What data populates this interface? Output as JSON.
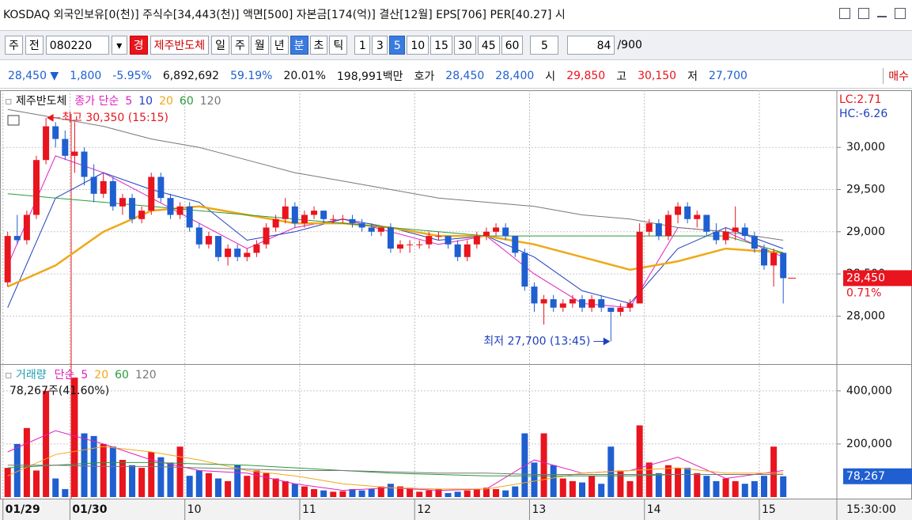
{
  "title_bar": "KOSDAQ 외국인보유[0(천)] 주식수[34,443(천)] 액면[500] 자본금[174(억)] 결산[12월] EPS[706] PER[40.27] 시",
  "toolbar": {
    "market": "주",
    "prev": "전",
    "code": "080220",
    "badge": "경",
    "name": "제주반도체",
    "periods": [
      "일",
      "주",
      "월",
      "년",
      "분",
      "초",
      "틱"
    ],
    "intervals": [
      "1",
      "3",
      "5",
      "10",
      "15",
      "30",
      "45",
      "60"
    ],
    "unit": "5",
    "count": "84",
    "max": "/900"
  },
  "info_bar": [
    "28,450 ▼",
    "1,800",
    "-5.95%",
    "6,892,692",
    "59.19%",
    "20.01%",
    "198,991백만",
    "호가",
    "28,450",
    "28,400",
    "시",
    "29,850",
    "고",
    "30,150",
    "저",
    "27,700",
    "매수"
  ],
  "time": "15:30:00",
  "chart_data": [
    {
      "type": "candlestick",
      "title": "제주반도체",
      "legend_label": "종가 단순",
      "categories": [
        "01/29",
        null,
        null,
        null,
        null,
        null,
        null,
        "01/30",
        null,
        null,
        null,
        null,
        null,
        null,
        null,
        null,
        null,
        null,
        null,
        "10",
        null,
        null,
        null,
        null,
        null,
        null,
        null,
        null,
        null,
        null,
        null,
        "11",
        null,
        null,
        null,
        null,
        null,
        null,
        null,
        null,
        null,
        null,
        null,
        "12",
        null,
        null,
        null,
        null,
        null,
        null,
        null,
        null,
        null,
        null,
        null,
        "13",
        null,
        null,
        null,
        null,
        null,
        null,
        null,
        null,
        null,
        null,
        null,
        "14",
        null,
        null,
        null,
        null,
        null,
        null,
        null,
        null,
        null,
        null,
        null,
        "15",
        null,
        null
      ],
      "open": [
        28400,
        28950,
        28900,
        29200,
        29850,
        30250,
        30100,
        29900,
        29950,
        29650,
        29450,
        29600,
        29300,
        29400,
        29150,
        29250,
        29650,
        29400,
        29200,
        29300,
        29050,
        28850,
        28950,
        28700,
        28800,
        28700,
        28750,
        28850,
        29050,
        29150,
        29300,
        29100,
        29200,
        29250,
        29150,
        29150,
        29150,
        29100,
        29050,
        29000,
        29050,
        28800,
        28850,
        28850,
        28850,
        28950,
        28950,
        28850,
        28700,
        28850,
        28950,
        29000,
        29050,
        28950,
        28750,
        28350,
        28150,
        28200,
        28100,
        28150,
        28200,
        28100,
        28200,
        28100,
        28050,
        28100,
        28150,
        29000,
        29100,
        28950,
        29200,
        29300,
        29150,
        29200,
        29000,
        28900,
        29000,
        29050,
        28950,
        28800,
        28600,
        28750
      ],
      "high": [
        29000,
        29200,
        29250,
        29900,
        30350,
        30300,
        30200,
        30300,
        30000,
        29800,
        29700,
        29650,
        29450,
        29450,
        29300,
        29700,
        29700,
        29450,
        29350,
        29350,
        29100,
        29000,
        28950,
        28850,
        28850,
        28800,
        28900,
        29100,
        29200,
        29400,
        29350,
        29250,
        29300,
        29250,
        29200,
        29200,
        29200,
        29150,
        29100,
        29050,
        29100,
        28900,
        28900,
        28900,
        29000,
        29000,
        28950,
        28900,
        28900,
        29000,
        29050,
        29100,
        29100,
        28950,
        28800,
        28400,
        28250,
        28250,
        28200,
        28250,
        28250,
        28250,
        28250,
        28100,
        28150,
        28200,
        29100,
        29150,
        29150,
        29250,
        29350,
        29350,
        29250,
        29200,
        29100,
        29050,
        29300,
        29100,
        29000,
        28850,
        28800,
        28750
      ],
      "low": [
        28350,
        28850,
        28850,
        29150,
        29800,
        30000,
        29850,
        29700,
        29550,
        29350,
        29400,
        29250,
        29200,
        29100,
        29100,
        29200,
        29350,
        29150,
        29150,
        29000,
        28800,
        28800,
        28650,
        28600,
        28650,
        28650,
        28700,
        28800,
        29000,
        29100,
        29050,
        29050,
        29150,
        29100,
        29100,
        29100,
        29050,
        29000,
        28950,
        28950,
        28750,
        28750,
        28750,
        28800,
        28800,
        28900,
        28800,
        28650,
        28650,
        28800,
        28900,
        28950,
        28900,
        28700,
        28300,
        28050,
        27900,
        28050,
        28050,
        28100,
        28050,
        28050,
        28050,
        27700,
        28000,
        28050,
        28150,
        28950,
        28900,
        28900,
        29100,
        29100,
        29050,
        28950,
        28850,
        28850,
        28900,
        28900,
        28750,
        28550,
        28350,
        28150
      ],
      "close": [
        28950,
        28900,
        29200,
        29850,
        30250,
        30100,
        29900,
        29950,
        29650,
        29450,
        29600,
        29300,
        29400,
        29150,
        29250,
        29650,
        29400,
        29200,
        29300,
        29050,
        28850,
        28950,
        28700,
        28800,
        28700,
        28750,
        28850,
        29050,
        29150,
        29300,
        29100,
        29200,
        29250,
        29150,
        29150,
        29150,
        29100,
        29050,
        29000,
        29050,
        28800,
        28850,
        28850,
        28850,
        28950,
        28950,
        28850,
        28700,
        28850,
        28950,
        29000,
        29050,
        28950,
        28750,
        28350,
        28150,
        28200,
        28100,
        28150,
        28200,
        28100,
        28200,
        28100,
        28050,
        28100,
        28150,
        29000,
        29100,
        28950,
        29200,
        29300,
        29150,
        29200,
        29000,
        28900,
        29000,
        29050,
        28950,
        28800,
        28600,
        28750,
        28450
      ],
      "up_color": "#e8141e",
      "down_color": "#1f5fd0",
      "series": [
        {
          "name": "5",
          "color": "#e020c0",
          "width": 1,
          "x": [
            0,
            5,
            10,
            15,
            20,
            25,
            30,
            35,
            40,
            45,
            50,
            55,
            60,
            65,
            70,
            75,
            81
          ],
          "values": [
            28600,
            29900,
            29700,
            29400,
            29100,
            28800,
            29050,
            29150,
            29000,
            28850,
            28950,
            28500,
            28150,
            28100,
            29050,
            29000,
            28700
          ]
        },
        {
          "name": "10",
          "color": "#1f3fc0",
          "width": 1,
          "x": [
            0,
            5,
            10,
            15,
            20,
            25,
            30,
            35,
            40,
            45,
            50,
            55,
            60,
            65,
            70,
            75,
            81
          ],
          "values": [
            28100,
            29400,
            29700,
            29500,
            29350,
            28900,
            29000,
            29150,
            29050,
            28900,
            28950,
            28700,
            28300,
            28150,
            28800,
            29050,
            28800
          ]
        },
        {
          "name": "20",
          "color": "#f0a818",
          "width": 2.5,
          "x": [
            0,
            5,
            10,
            15,
            20,
            25,
            30,
            35,
            40,
            45,
            50,
            55,
            60,
            65,
            70,
            75,
            81
          ],
          "values": [
            28350,
            28600,
            29000,
            29250,
            29300,
            29200,
            29100,
            29100,
            29050,
            28950,
            28950,
            28850,
            28700,
            28550,
            28650,
            28800,
            28750
          ]
        },
        {
          "name": "60",
          "color": "#2a9a3a",
          "width": 1,
          "x": [
            0,
            5,
            10,
            15,
            20,
            25,
            30,
            35,
            40,
            45,
            50,
            55,
            60,
            65,
            70,
            75,
            81
          ],
          "values": [
            29450,
            29400,
            29350,
            29300,
            29250,
            29200,
            29150,
            29100,
            29050,
            29000,
            28950,
            28950,
            28950,
            28950,
            28950,
            28950,
            28750
          ]
        },
        {
          "name": "120",
          "color": "#777777",
          "width": 1,
          "x": [
            0,
            5,
            10,
            15,
            20,
            25,
            30,
            35,
            40,
            45,
            50,
            55,
            60,
            65,
            70,
            75,
            81
          ],
          "values": [
            30450,
            30350,
            30250,
            30100,
            30000,
            29850,
            29700,
            29600,
            29500,
            29400,
            29350,
            29300,
            29200,
            29150,
            29050,
            29000,
            28900
          ]
        }
      ],
      "xlim": [
        -0.8,
        86.6
      ],
      "ylim": [
        27450,
        30640
      ],
      "yticks": [
        {
          "value": 28000,
          "label": "28,000"
        },
        {
          "value": 28500,
          "label": "28,500"
        },
        {
          "value": 29000,
          "label": "29,000"
        },
        {
          "value": 29500,
          "label": "29,500"
        },
        {
          "value": 30000,
          "label": "30,000"
        }
      ],
      "annotations": [
        "최고 30,350 (15:15)",
        "최저 27,700 (13:45)"
      ],
      "stats": [
        "LC:2.71",
        "HC:-6.26"
      ],
      "last_price": {
        "value": 28450,
        "label": "28,450"
      },
      "last_change": "0.71%"
    },
    {
      "type": "bar",
      "title": "거래량",
      "legend_label": "단순",
      "values": [
        110000,
        200000,
        260000,
        100000,
        400000,
        70000,
        30000,
        450000,
        240000,
        230000,
        200000,
        190000,
        140000,
        120000,
        110000,
        170000,
        150000,
        130000,
        190000,
        80000,
        100000,
        90000,
        70000,
        60000,
        120000,
        80000,
        100000,
        90000,
        70000,
        60000,
        50000,
        40000,
        30000,
        25000,
        20000,
        22000,
        30000,
        25000,
        30000,
        40000,
        50000,
        40000,
        35000,
        20000,
        25000,
        30000,
        15000,
        20000,
        25000,
        30000,
        35000,
        30000,
        25000,
        40000,
        240000,
        130000,
        240000,
        120000,
        70000,
        60000,
        55000,
        80000,
        50000,
        190000,
        100000,
        60000,
        270000,
        130000,
        90000,
        120000,
        110000,
        110000,
        90000,
        80000,
        60000,
        70000,
        60000,
        50000,
        60000,
        80000,
        190000,
        78267
      ],
      "series": [
        {
          "name": "5",
          "color": "#e020c0",
          "x": [
            0,
            5,
            10,
            15,
            20,
            25,
            30,
            35,
            40,
            45,
            50,
            55,
            60,
            65,
            70,
            75,
            81
          ],
          "values": [
            170000,
            250000,
            200000,
            140000,
            100000,
            90000,
            50000,
            25000,
            35000,
            25000,
            30000,
            140000,
            90000,
            100000,
            150000,
            70000,
            100000
          ]
        },
        {
          "name": "20",
          "color": "#f0a818",
          "x": [
            0,
            5,
            10,
            15,
            20,
            25,
            30,
            35,
            40,
            45,
            50,
            55,
            60,
            65,
            70,
            75,
            81
          ],
          "values": [
            80000,
            160000,
            190000,
            170000,
            140000,
            100000,
            80000,
            50000,
            35000,
            30000,
            30000,
            60000,
            90000,
            100000,
            110000,
            90000,
            90000
          ]
        },
        {
          "name": "60",
          "color": "#2a9a3a",
          "x": [
            0,
            5,
            10,
            15,
            20,
            25,
            30,
            35,
            40,
            45,
            50,
            55,
            60,
            65,
            70,
            75,
            81
          ],
          "values": [
            110000,
            120000,
            130000,
            130000,
            125000,
            120000,
            110000,
            100000,
            90000,
            85000,
            80000,
            80000,
            80000,
            80000,
            85000,
            85000,
            85000
          ]
        },
        {
          "name": "120",
          "color": "#777777",
          "x": [
            0,
            5,
            10,
            15,
            20,
            25,
            30,
            35,
            40,
            45,
            50,
            55,
            60,
            65,
            70,
            75,
            81
          ],
          "values": [
            120000,
            120000,
            115000,
            115000,
            110000,
            105000,
            100000,
            100000,
            95000,
            90000,
            90000,
            85000,
            85000,
            85000,
            85000,
            85000,
            85000
          ]
        }
      ],
      "ylim": [
        0,
        495000
      ],
      "yticks": [
        {
          "value": 200000,
          "label": "200,000"
        },
        {
          "value": 400000,
          "label": "400,000"
        }
      ],
      "value_summary": "78,267주(41.60%)",
      "last_volume": {
        "value": 78267,
        "label": "78,267"
      },
      "last_ratio": "41.60%"
    }
  ]
}
